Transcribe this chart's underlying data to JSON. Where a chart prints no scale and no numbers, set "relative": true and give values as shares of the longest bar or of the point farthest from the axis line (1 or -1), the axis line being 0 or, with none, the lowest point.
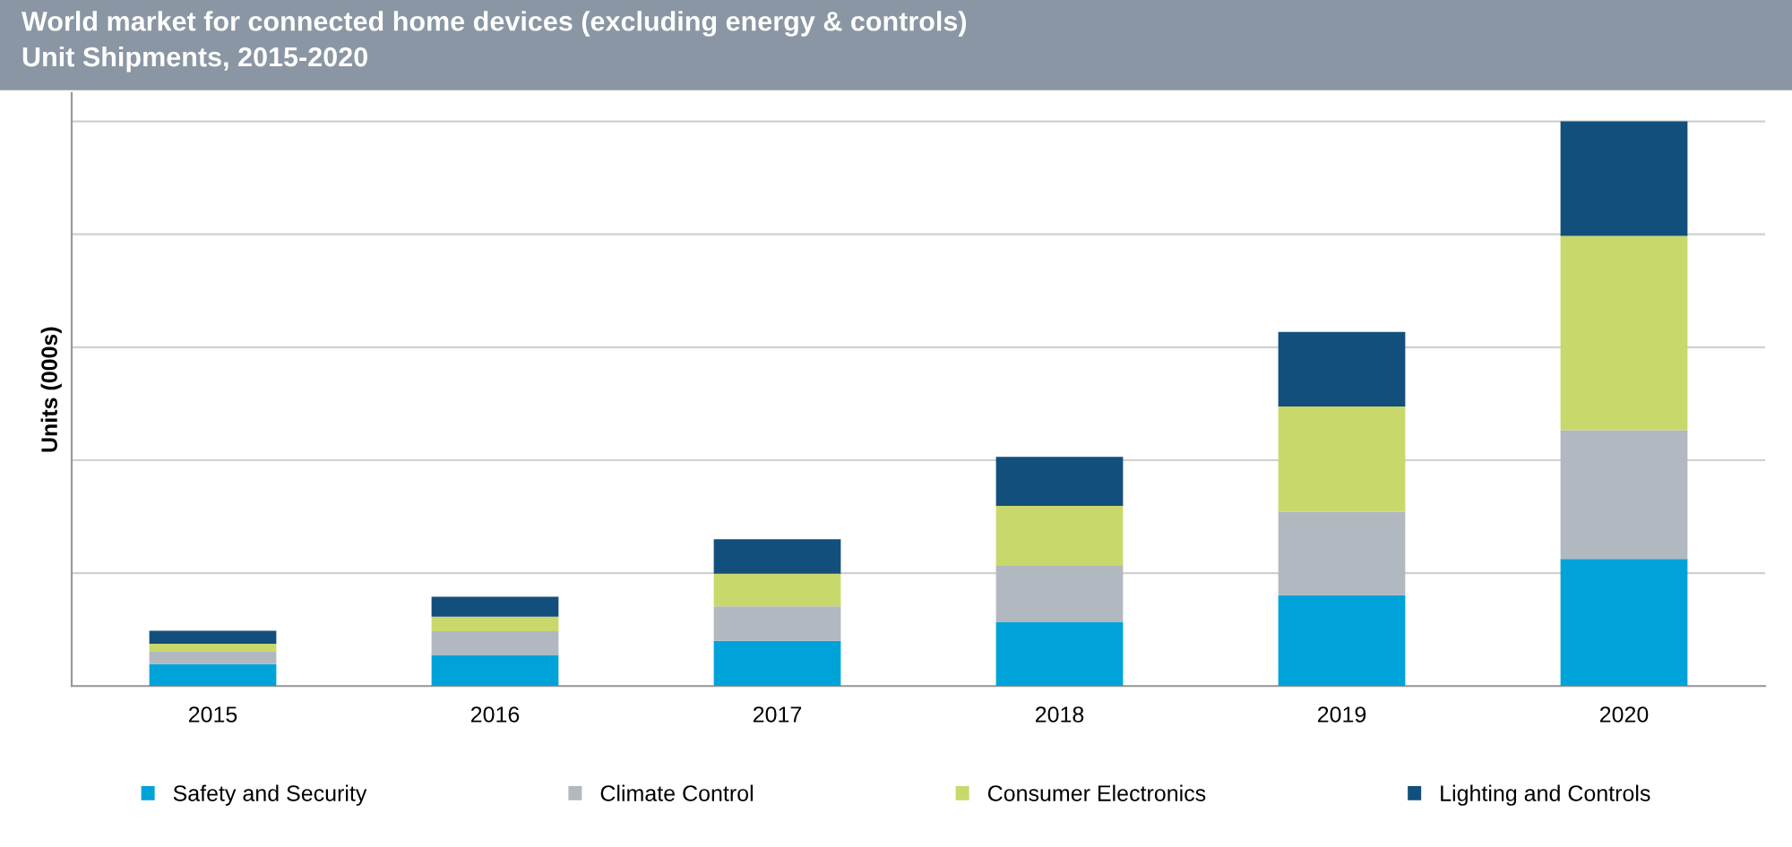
{
  "chart_data": {
    "type": "bar",
    "title": "World market for connected home devices (excluding energy & controls)",
    "subtitle": "Unit Shipments, 2015-2020",
    "ylabel": "Units (000s)",
    "categories": [
      "2015",
      "2016",
      "2017",
      "2018",
      "2019",
      "2020"
    ],
    "stacked": true,
    "relative": true,
    "grid": "y",
    "legend": "bottom",
    "series": [
      {
        "name": "Safety and Security",
        "color": "#00a3d9",
        "values": [
          0.039,
          0.055,
          0.08,
          0.113,
          0.161,
          0.225
        ]
      },
      {
        "name": "Climate Control",
        "color": "#b2b8bf",
        "values": [
          0.023,
          0.042,
          0.061,
          0.1,
          0.148,
          0.228
        ]
      },
      {
        "name": "Consumer Electronics",
        "color": "#c9d86b",
        "values": [
          0.013,
          0.026,
          0.058,
          0.106,
          0.186,
          0.344
        ]
      },
      {
        "name": "Lighting and Controls",
        "color": "#134f7c",
        "values": [
          0.023,
          0.035,
          0.061,
          0.087,
          0.132,
          0.203
        ]
      }
    ]
  }
}
